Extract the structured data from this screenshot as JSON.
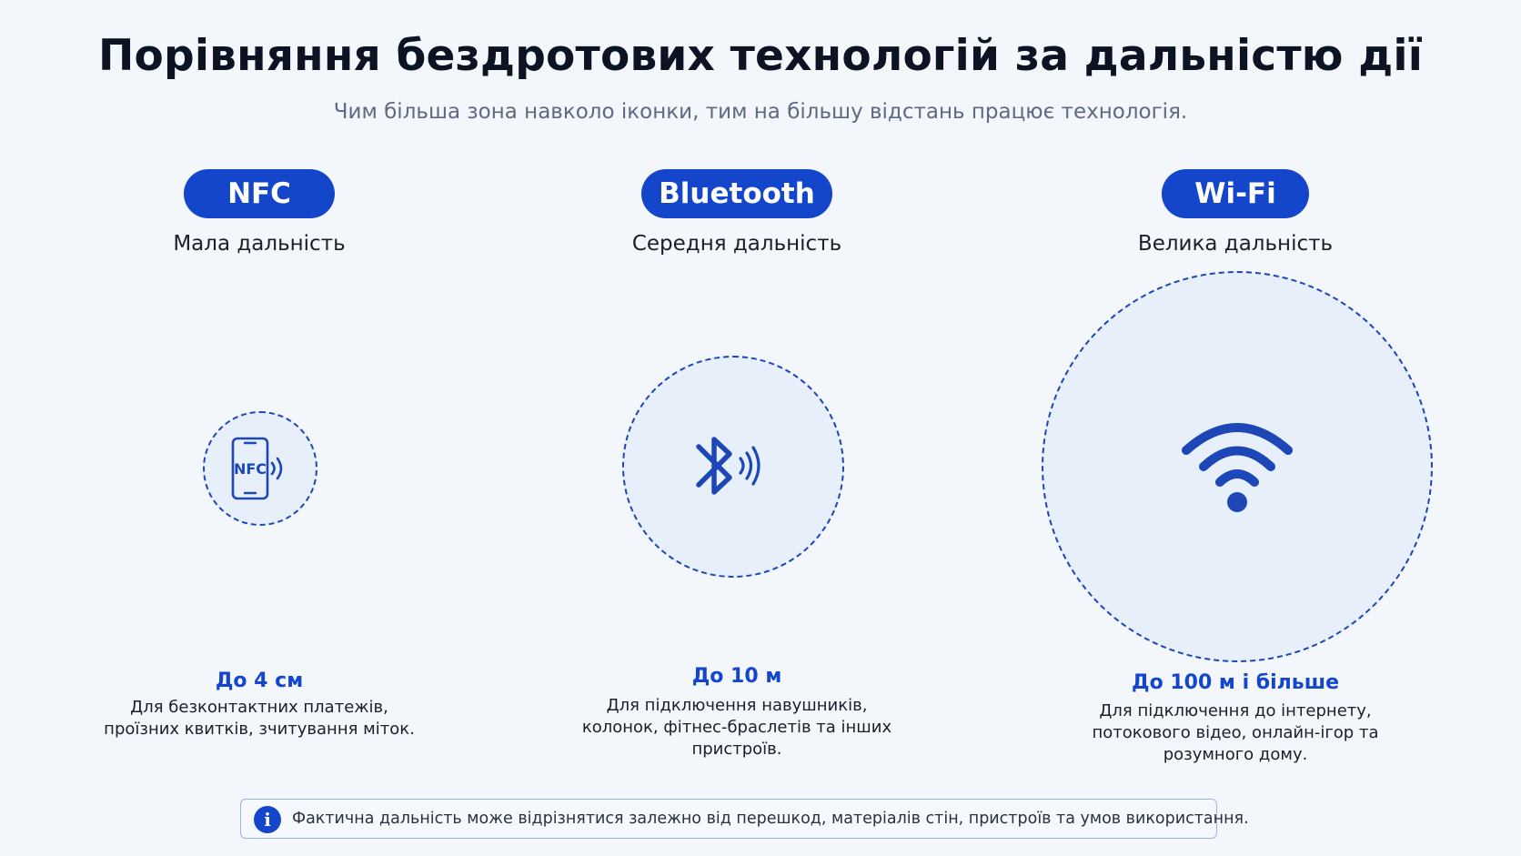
{
  "header": {
    "title": "Порівняння бездротових технологій за дальністю дії",
    "subtitle": "Чим більша зона навколо іконки, тим на більшу відстань працює технологія."
  },
  "technologies": [
    {
      "name": "NFC",
      "range_label": "Мала дальність",
      "icon": "nfc-phone-icon",
      "icon_text": "NFC",
      "distance": "До 4 см",
      "description": [
        "Для безконтактних платежів,",
        "проїзних квитків, зчитування міток."
      ]
    },
    {
      "name": "Bluetooth",
      "range_label": "Середня дальність",
      "icon": "bluetooth-icon",
      "distance": "До 10 м",
      "description": [
        "Для підключення навушників,",
        "колонок, фітнес-браслетів та інших",
        "пристроїв."
      ]
    },
    {
      "name": "Wi-Fi",
      "range_label": "Велика дальність",
      "icon": "wifi-icon",
      "distance": "До 100 м і більше",
      "description": [
        "Для підключення до інтернету,",
        "потокового відео, онлайн-ігор та",
        "розумного дому."
      ]
    }
  ],
  "footer_note": {
    "icon": "info-icon",
    "icon_text": "i",
    "text": "Фактична дальність може відрізнятися залежно від перешкод, матеріалів стін, пристроїв та умов використання."
  },
  "colors": {
    "accent": "#1446cc",
    "zone_fill": "#e7effb",
    "zone_border": "#1d46b6",
    "background": "#f3f6fb"
  }
}
